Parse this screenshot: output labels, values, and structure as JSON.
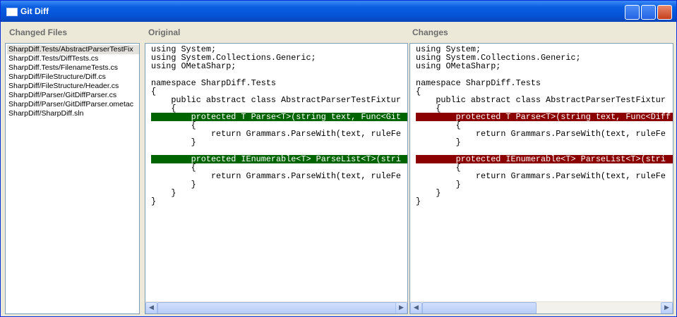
{
  "window": {
    "title": "Git Diff"
  },
  "files_pane": {
    "header": "Changed Files",
    "files": [
      "SharpDiff.Tests/AbstractParserTestFix",
      "SharpDiff.Tests/DiffTests.cs",
      "SharpDiff.Tests/FilenameTests.cs",
      "SharpDiff/FileStructure/Diff.cs",
      "SharpDiff/FileStructure/Header.cs",
      "SharpDiff/Parser/GitDiffParser.cs",
      "SharpDiff/Parser/GitDiffParser.ometac",
      "SharpDiff/SharpDiff.sln"
    ],
    "selected": 0
  },
  "original_pane": {
    "header": "Original",
    "highlight_color": "#006400",
    "lines": [
      {
        "text": "using System;"
      },
      {
        "text": "using System.Collections.Generic;"
      },
      {
        "text": "using OMetaSharp;"
      },
      null,
      {
        "text": "namespace SharpDiff.Tests"
      },
      {
        "text": "{"
      },
      {
        "text": "    public abstract class AbstractParserTestFixtur"
      },
      {
        "text": "    {"
      },
      {
        "text": "        protected T Parse<T>(string text, Func<Git",
        "highlight": true
      },
      {
        "text": "        {"
      },
      {
        "text": "            return Grammars.ParseWith(text, ruleFe"
      },
      {
        "text": "        }"
      },
      null,
      {
        "text": "        protected IEnumerable<T> ParseList<T>(stri",
        "highlight": true
      },
      {
        "text": "        {"
      },
      {
        "text": "            return Grammars.ParseWith(text, ruleFe"
      },
      {
        "text": "        }"
      },
      {
        "text": "    }"
      },
      {
        "text": "}"
      }
    ]
  },
  "changes_pane": {
    "header": "Changes",
    "highlight_color": "#8b0000",
    "lines": [
      {
        "text": "using System;"
      },
      {
        "text": "using System.Collections.Generic;"
      },
      {
        "text": "using OMetaSharp;"
      },
      null,
      {
        "text": "namespace SharpDiff.Tests"
      },
      {
        "text": "{"
      },
      {
        "text": "    public abstract class AbstractParserTestFixtur"
      },
      {
        "text": "    {"
      },
      {
        "text": "        protected T Parse<T>(string text, Func<Diff",
        "highlight": true
      },
      {
        "text": "        {"
      },
      {
        "text": "            return Grammars.ParseWith(text, ruleFe"
      },
      {
        "text": "        }"
      },
      null,
      {
        "text": "        protected IEnumerable<T> ParseList<T>(stri",
        "highlight": true
      },
      {
        "text": "        {"
      },
      {
        "text": "            return Grammars.ParseWith(text, ruleFe"
      },
      {
        "text": "        }"
      },
      {
        "text": "    }"
      },
      {
        "text": "}"
      }
    ]
  }
}
